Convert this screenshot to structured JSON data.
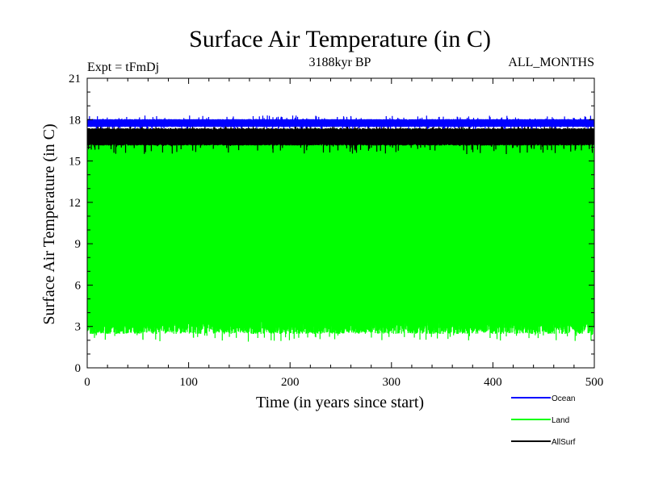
{
  "chart_data": {
    "type": "line",
    "title": "Surface Air Temperature (in C)",
    "subtitle_left": "Expt = tFmDj",
    "subtitle_center": "3188kyr BP",
    "subtitle_right": "ALL_MONTHS",
    "xlabel": "Time (in years since start)",
    "ylabel": "Surface Air Temperature (in C)",
    "xlim": [
      0,
      500
    ],
    "ylim": [
      0,
      21
    ],
    "xticks": [
      0,
      100,
      200,
      300,
      400,
      500
    ],
    "xtick_labels": [
      "0",
      "100",
      "200",
      "300",
      "400",
      "500"
    ],
    "yticks": [
      0,
      3,
      6,
      9,
      12,
      15,
      18,
      21
    ],
    "ytick_labels": [
      "0",
      "3",
      "6",
      "9",
      "12",
      "15",
      "18",
      "21"
    ],
    "legend_position": "bottom-right",
    "series": [
      {
        "name": "Land",
        "color": "#00ff00",
        "typical_low": 3.0,
        "typical_high": 16.8,
        "min": 1.9,
        "max": 17.4
      },
      {
        "name": "AllSurf",
        "color": "#000000",
        "typical_low": 16.2,
        "typical_high": 17.3,
        "min": 15.5,
        "max": 17.7
      },
      {
        "name": "Ocean",
        "color": "#0000ff",
        "typical_low": 17.5,
        "typical_high": 18.0,
        "min": 17.3,
        "max": 18.3
      }
    ],
    "legend": [
      "Ocean",
      "Land",
      "AllSurf"
    ]
  }
}
